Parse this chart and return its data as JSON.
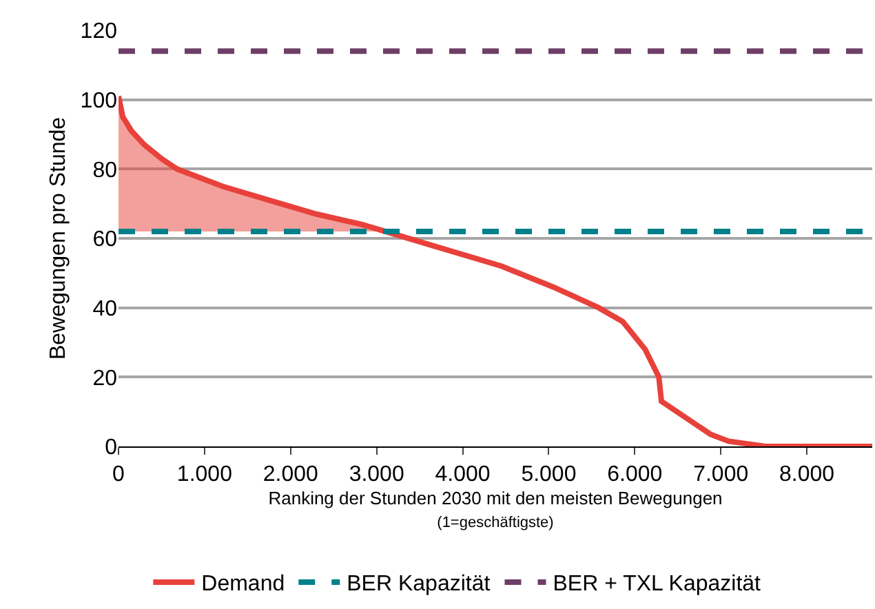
{
  "chart_data": {
    "type": "line",
    "xlabel": "Ranking der Stunden 2030 mit den meisten Bewegungen\n(1=geschäftigste)",
    "ylabel": "Bewegungen pro Stunde",
    "xlim": [
      0,
      8760
    ],
    "xticks": [
      {
        "value": 0,
        "label": "0"
      },
      {
        "value": 1000,
        "label": "1.000"
      },
      {
        "value": 2000,
        "label": "2.000"
      },
      {
        "value": 3000,
        "label": "3.000"
      },
      {
        "value": 4000,
        "label": "4.000"
      },
      {
        "value": 5000,
        "label": "5.000"
      },
      {
        "value": 6000,
        "label": "6.000"
      },
      {
        "value": 7000,
        "label": "7.000"
      },
      {
        "value": 8000,
        "label": "8.000"
      }
    ],
    "ylim": [
      0,
      120
    ],
    "yticks": [
      0,
      20,
      40,
      60,
      80,
      100,
      120
    ],
    "grid": "y",
    "legend": "bottom",
    "marker": "none",
    "series": [
      {
        "name": "Demand",
        "color": "#e8413b",
        "line_style": "solid",
        "x": [
          0,
          50,
          150,
          300,
          500,
          680,
          1210,
          1750,
          2300,
          2830,
          3100,
          3640,
          4450,
          5050,
          5580,
          5860,
          6120,
          6280,
          6310,
          6670,
          6880,
          7090,
          7520,
          8760
        ],
        "values": [
          101,
          95,
          91,
          87,
          83,
          80,
          75,
          71,
          67,
          64,
          62,
          58,
          52,
          46,
          40,
          36,
          28,
          20,
          13,
          7,
          3.5,
          1.5,
          0,
          0
        ],
        "lower": [
          62,
          62,
          62,
          62,
          62,
          62,
          62,
          62,
          62,
          62,
          62,
          null,
          null,
          null,
          null,
          null,
          null,
          null,
          null,
          null,
          null,
          null,
          null,
          null
        ],
        "upper": [
          101,
          95,
          91,
          87,
          83,
          80,
          75,
          71,
          67,
          64,
          62,
          null,
          null,
          null,
          null,
          null,
          null,
          null,
          null,
          null,
          null,
          null,
          null,
          null
        ]
      },
      {
        "name": "BER Kapazität",
        "type": "line",
        "color": "#00808a",
        "line_style": "dashed",
        "x": [
          0,
          8760
        ],
        "values": [
          62,
          62
        ]
      },
      {
        "name": "BER + TXL Kapazität",
        "type": "line",
        "color": "#6e3f66",
        "line_style": "dashed",
        "x": [
          0,
          8760
        ],
        "values": [
          114,
          114
        ]
      }
    ]
  }
}
